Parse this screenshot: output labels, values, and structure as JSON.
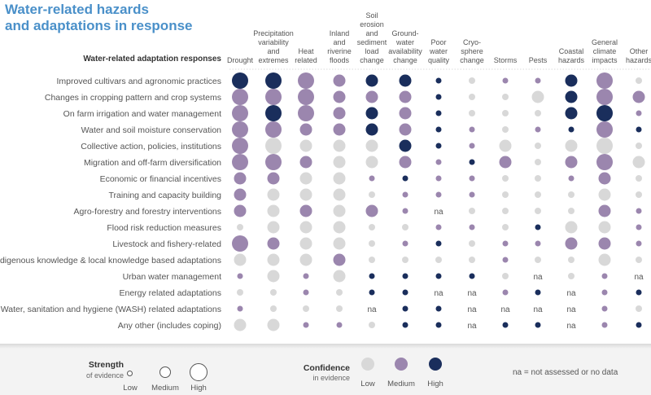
{
  "title": {
    "line1": "Water-related hazards",
    "line2": "and adaptations in response"
  },
  "chart_data": {
    "type": "bubble-matrix",
    "row_header": "Water-related adaptation responses",
    "columns": [
      {
        "lines": [
          "Drought"
        ]
      },
      {
        "lines": [
          "Precipitation",
          "variability",
          "and",
          "extremes"
        ]
      },
      {
        "lines": [
          "Heat",
          "related"
        ]
      },
      {
        "lines": [
          "Inland",
          "and",
          "riverine",
          "floods"
        ]
      },
      {
        "lines": [
          "Soil",
          "erosion",
          "and",
          "sediment",
          "load",
          "change"
        ]
      },
      {
        "lines": [
          "Ground-",
          "water",
          "availability",
          "change"
        ]
      },
      {
        "lines": [
          "Poor",
          "water",
          "quality"
        ]
      },
      {
        "lines": [
          "Cryo-",
          "sphere",
          "change"
        ]
      },
      {
        "lines": [
          "Storms"
        ]
      },
      {
        "lines": [
          "Pests"
        ]
      },
      {
        "lines": [
          "Coastal",
          "hazards"
        ]
      },
      {
        "lines": [
          "General",
          "climate",
          "impacts"
        ]
      },
      {
        "lines": [
          "Other",
          "hazards"
        ]
      }
    ],
    "rows": [
      {
        "label": "Improved cultivars and agronomic practices",
        "cells": [
          [
            "H",
            "H"
          ],
          [
            "H",
            "H"
          ],
          [
            "H",
            "M"
          ],
          [
            "M",
            "M"
          ],
          [
            "M",
            "H"
          ],
          [
            "M",
            "H"
          ],
          [
            "L",
            "H"
          ],
          [
            "L",
            "L"
          ],
          [
            "L",
            "M"
          ],
          [
            "L",
            "M"
          ],
          [
            "M",
            "H"
          ],
          [
            "H",
            "M"
          ],
          [
            "L",
            "L"
          ]
        ]
      },
      {
        "label": "Changes in cropping pattern and crop systems",
        "cells": [
          [
            "H",
            "M"
          ],
          [
            "H",
            "M"
          ],
          [
            "H",
            "M"
          ],
          [
            "M",
            "M"
          ],
          [
            "M",
            "M"
          ],
          [
            "M",
            "M"
          ],
          [
            "L",
            "H"
          ],
          [
            "L",
            "L"
          ],
          [
            "L",
            "L"
          ],
          [
            "M",
            "L"
          ],
          [
            "M",
            "H"
          ],
          [
            "H",
            "M"
          ],
          [
            "M",
            "M"
          ]
        ]
      },
      {
        "label": "On farm irrigation and water management",
        "cells": [
          [
            "H",
            "M"
          ],
          [
            "H",
            "H"
          ],
          [
            "H",
            "M"
          ],
          [
            "M",
            "M"
          ],
          [
            "M",
            "H"
          ],
          [
            "M",
            "M"
          ],
          [
            "L",
            "H"
          ],
          [
            "L",
            "L"
          ],
          [
            "L",
            "L"
          ],
          [
            "L",
            "L"
          ],
          [
            "M",
            "H"
          ],
          [
            "H",
            "H"
          ],
          [
            "L",
            "M"
          ]
        ]
      },
      {
        "label": "Water and soil moisture conservation",
        "cells": [
          [
            "H",
            "M"
          ],
          [
            "H",
            "M"
          ],
          [
            "M",
            "M"
          ],
          [
            "M",
            "M"
          ],
          [
            "M",
            "H"
          ],
          [
            "M",
            "M"
          ],
          [
            "L",
            "H"
          ],
          [
            "L",
            "M"
          ],
          [
            "L",
            "L"
          ],
          [
            "L",
            "M"
          ],
          [
            "L",
            "H"
          ],
          [
            "H",
            "M"
          ],
          [
            "L",
            "H"
          ]
        ]
      },
      {
        "label": "Collective action, policies, institutions",
        "cells": [
          [
            "H",
            "M"
          ],
          [
            "H",
            "L"
          ],
          [
            "M",
            "L"
          ],
          [
            "M",
            "L"
          ],
          [
            "M",
            "L"
          ],
          [
            "M",
            "H"
          ],
          [
            "L",
            "H"
          ],
          [
            "L",
            "M"
          ],
          [
            "M",
            "L"
          ],
          [
            "L",
            "L"
          ],
          [
            "M",
            "L"
          ],
          [
            "H",
            "L"
          ],
          [
            "L",
            "L"
          ]
        ]
      },
      {
        "label": "Migration and off-farm diversification",
        "cells": [
          [
            "H",
            "M"
          ],
          [
            "H",
            "M"
          ],
          [
            "M",
            "M"
          ],
          [
            "M",
            "L"
          ],
          [
            "M",
            "L"
          ],
          [
            "M",
            "M"
          ],
          [
            "L",
            "M"
          ],
          [
            "L",
            "H"
          ],
          [
            "M",
            "M"
          ],
          [
            "L",
            "L"
          ],
          [
            "M",
            "M"
          ],
          [
            "H",
            "M"
          ],
          [
            "M",
            "L"
          ]
        ]
      },
      {
        "label": "Economic or financial incentives",
        "cells": [
          [
            "M",
            "M"
          ],
          [
            "M",
            "M"
          ],
          [
            "M",
            "L"
          ],
          [
            "M",
            "L"
          ],
          [
            "L",
            "M"
          ],
          [
            "L",
            "H"
          ],
          [
            "L",
            "M"
          ],
          [
            "L",
            "M"
          ],
          [
            "L",
            "L"
          ],
          [
            "L",
            "L"
          ],
          [
            "L",
            "M"
          ],
          [
            "M",
            "M"
          ],
          [
            "L",
            "L"
          ]
        ]
      },
      {
        "label": "Training and capacity building",
        "cells": [
          [
            "M",
            "M"
          ],
          [
            "M",
            "L"
          ],
          [
            "M",
            "L"
          ],
          [
            "M",
            "L"
          ],
          [
            "L",
            "L"
          ],
          [
            "L",
            "M"
          ],
          [
            "L",
            "M"
          ],
          [
            "L",
            "M"
          ],
          [
            "L",
            "L"
          ],
          [
            "L",
            "L"
          ],
          [
            "L",
            "L"
          ],
          [
            "M",
            "L"
          ],
          [
            "L",
            "L"
          ]
        ]
      },
      {
        "label": "Agro-forestry and forestry interventions",
        "cells": [
          [
            "M",
            "M"
          ],
          [
            "M",
            "L"
          ],
          [
            "M",
            "M"
          ],
          [
            "M",
            "L"
          ],
          [
            "M",
            "M"
          ],
          [
            "L",
            "M"
          ],
          [
            "na"
          ],
          [
            "L",
            "L"
          ],
          [
            "L",
            "L"
          ],
          [
            "L",
            "L"
          ],
          [
            "L",
            "L"
          ],
          [
            "M",
            "M"
          ],
          [
            "L",
            "M"
          ]
        ]
      },
      {
        "label": "Flood risk reduction measures",
        "cells": [
          [
            "L",
            "L"
          ],
          [
            "M",
            "L"
          ],
          [
            "M",
            "L"
          ],
          [
            "M",
            "L"
          ],
          [
            "L",
            "L"
          ],
          [
            "L",
            "L"
          ],
          [
            "L",
            "M"
          ],
          [
            "L",
            "M"
          ],
          [
            "L",
            "L"
          ],
          [
            "L",
            "H"
          ],
          [
            "M",
            "L"
          ],
          [
            "M",
            "L"
          ],
          [
            "L",
            "M"
          ]
        ]
      },
      {
        "label": "Livestock and fishery-related",
        "cells": [
          [
            "H",
            "M"
          ],
          [
            "M",
            "M"
          ],
          [
            "M",
            "L"
          ],
          [
            "M",
            "L"
          ],
          [
            "L",
            "L"
          ],
          [
            "L",
            "M"
          ],
          [
            "L",
            "H"
          ],
          [
            "L",
            "L"
          ],
          [
            "L",
            "M"
          ],
          [
            "L",
            "M"
          ],
          [
            "M",
            "M"
          ],
          [
            "M",
            "M"
          ],
          [
            "L",
            "M"
          ]
        ]
      },
      {
        "label": "Indigenous knowledge & local knowledge based adaptations",
        "cells": [
          [
            "M",
            "L"
          ],
          [
            "M",
            "L"
          ],
          [
            "M",
            "L"
          ],
          [
            "M",
            "M"
          ],
          [
            "L",
            "L"
          ],
          [
            "L",
            "L"
          ],
          [
            "L",
            "L"
          ],
          [
            "L",
            "L"
          ],
          [
            "L",
            "M"
          ],
          [
            "L",
            "L"
          ],
          [
            "L",
            "L"
          ],
          [
            "M",
            "L"
          ],
          [
            "L",
            "L"
          ]
        ]
      },
      {
        "label": "Urban water management",
        "cells": [
          [
            "L",
            "M"
          ],
          [
            "M",
            "L"
          ],
          [
            "L",
            "M"
          ],
          [
            "M",
            "L"
          ],
          [
            "L",
            "H"
          ],
          [
            "L",
            "H"
          ],
          [
            "L",
            "H"
          ],
          [
            "L",
            "H"
          ],
          [
            "L",
            "L"
          ],
          [
            "na"
          ],
          [
            "L",
            "L"
          ],
          [
            "L",
            "M"
          ],
          [
            "na"
          ]
        ]
      },
      {
        "label": "Energy related adaptations",
        "cells": [
          [
            "L",
            "L"
          ],
          [
            "L",
            "L"
          ],
          [
            "L",
            "M"
          ],
          [
            "L",
            "L"
          ],
          [
            "L",
            "H"
          ],
          [
            "L",
            "H"
          ],
          [
            "na"
          ],
          [
            "na"
          ],
          [
            "L",
            "M"
          ],
          [
            "L",
            "H"
          ],
          [
            "na"
          ],
          [
            "L",
            "M"
          ],
          [
            "L",
            "H"
          ]
        ]
      },
      {
        "label": "Water, sanitation and hygiene (WASH) related adaptations",
        "cells": [
          [
            "L",
            "M"
          ],
          [
            "L",
            "L"
          ],
          [
            "L",
            "L"
          ],
          [
            "L",
            "L"
          ],
          [
            "na"
          ],
          [
            "L",
            "H"
          ],
          [
            "L",
            "H"
          ],
          [
            "na"
          ],
          [
            "na"
          ],
          [
            "na"
          ],
          [
            "na"
          ],
          [
            "L",
            "M"
          ],
          [
            "L",
            "L"
          ]
        ]
      },
      {
        "label": "Any other (includes coping)",
        "cells": [
          [
            "M",
            "L"
          ],
          [
            "M",
            "L"
          ],
          [
            "L",
            "M"
          ],
          [
            "L",
            "M"
          ],
          [
            "L",
            "L"
          ],
          [
            "L",
            "H"
          ],
          [
            "L",
            "H"
          ],
          [
            "na"
          ],
          [
            "L",
            "H"
          ],
          [
            "L",
            "H"
          ],
          [
            "na"
          ],
          [
            "L",
            "M"
          ],
          [
            "L",
            "H"
          ]
        ]
      }
    ],
    "na_text": "na",
    "colors": {
      "low": "#d8d8d8",
      "medium": "#9b86ae",
      "high": "#1a2e5c"
    },
    "grid": false
  },
  "legend": {
    "strength": {
      "title": "Strength",
      "subtitle": "of evidence",
      "labels": [
        "Low",
        "Medium",
        "High"
      ]
    },
    "confidence": {
      "title": "Confidence",
      "subtitle": "in evidence",
      "labels": [
        "Low",
        "Medium",
        "High"
      ]
    },
    "na_note": "na  = not assessed or no data"
  }
}
